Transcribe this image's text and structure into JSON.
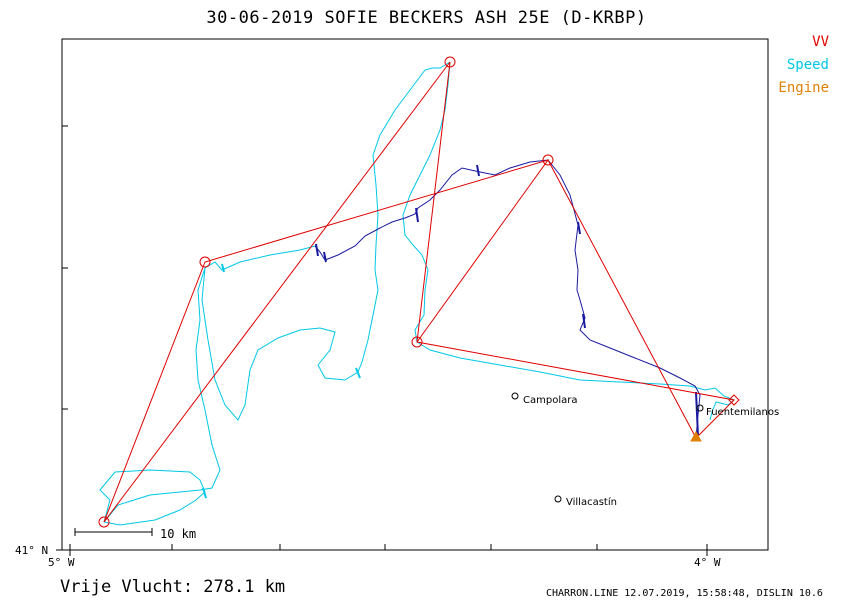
{
  "header": {
    "title": "30-06-2019   SOFIE BECKERS   ASH 25E (D-KRBP)"
  },
  "legend": {
    "vv": {
      "label": "VV",
      "color": "#e00000"
    },
    "speed": {
      "label": "Speed",
      "color": "#00c8e6"
    },
    "engine": {
      "label": "Engine",
      "color": "#e08000"
    }
  },
  "axes": {
    "lat_label": "41° N",
    "lon_west_label": "5° W",
    "lon_east_label": "4° W"
  },
  "towns": [
    {
      "name": "Campolara"
    },
    {
      "name": "Fuentemilanos"
    },
    {
      "name": "Villacastín"
    }
  ],
  "scale": {
    "label": "10 km"
  },
  "flight": {
    "distance_text": "Vrije Vlucht:  278.1 km"
  },
  "footer": {
    "text": "CHARRON.LINE 12.07.2019, 15:58:48, DISLIN 10.6"
  },
  "colors": {
    "track_cyan": "#00c8e6",
    "track_dark": "#1a1aa0",
    "task_line": "#e00000",
    "engine": "#e08000"
  }
}
